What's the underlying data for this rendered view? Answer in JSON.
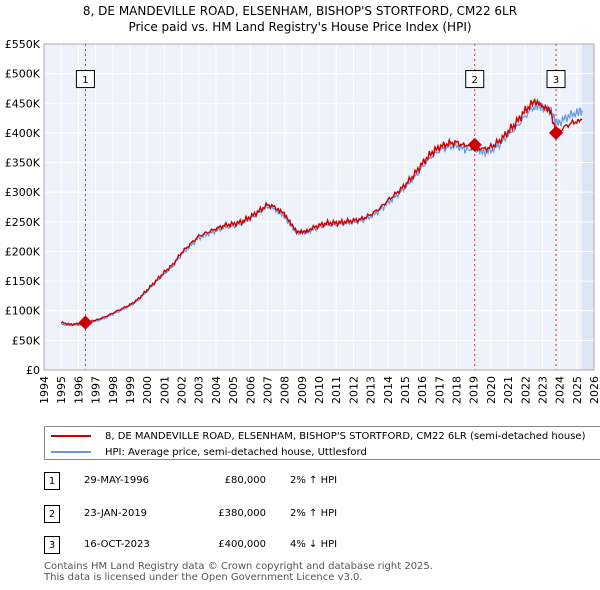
{
  "title_line1": "8, DE MANDEVILLE ROAD, ELSENHAM, BISHOP'S STORTFORD, CM22 6LR",
  "title_line2": "Price paid vs. HM Land Registry's House Price Index (HPI)",
  "colors": {
    "property": "#cc0000",
    "hpi": "#6699dd",
    "plot_bg": "#eef2fb",
    "future_bg": "#dde4f4"
  },
  "chart_data": {
    "type": "line",
    "title": "8, DE MANDEVILLE ROAD, ELSENHAM, BISHOP'S STORTFORD, CM22 6LR — Price paid vs. HM Land Registry's House Price Index (HPI)",
    "xlabel": "",
    "ylabel": "",
    "xlim": [
      1994,
      2026
    ],
    "ylim": [
      0,
      550000
    ],
    "x_ticks": [
      1994,
      1995,
      1996,
      1997,
      1998,
      1999,
      2000,
      2001,
      2002,
      2003,
      2004,
      2005,
      2006,
      2007,
      2008,
      2009,
      2010,
      2011,
      2012,
      2013,
      2014,
      2015,
      2016,
      2017,
      2018,
      2019,
      2020,
      2021,
      2022,
      2023,
      2024,
      2025,
      2026
    ],
    "x_tick_labels": [
      "1994",
      "1995",
      "1996",
      "1997",
      "1998",
      "1999",
      "2000",
      "2001",
      "2002",
      "2003",
      "2004",
      "2005",
      "2006",
      "2007",
      "2008",
      "2009",
      "2010",
      "2011",
      "2012",
      "2013",
      "2014",
      "2015",
      "2016",
      "2017",
      "2018",
      "2019",
      "2020",
      "2021",
      "2022",
      "2023",
      "2024",
      "2025",
      "2026"
    ],
    "y_ticks": [
      0,
      50000,
      100000,
      150000,
      200000,
      250000,
      300000,
      350000,
      400000,
      450000,
      500000,
      550000
    ],
    "y_tick_labels": [
      "£0",
      "£50K",
      "£100K",
      "£150K",
      "£200K",
      "£250K",
      "£300K",
      "£350K",
      "£400K",
      "£450K",
      "£500K",
      "£550K"
    ],
    "data_start": 1995,
    "data_end": 2025.3,
    "series": [
      {
        "name": "8, DE MANDEVILLE ROAD, ELSENHAM, BISHOP'S STORTFORD, CM22 6LR (semi-detached house)",
        "x": [
          1995,
          1995.5,
          1996,
          1996.41,
          1997,
          1997.5,
          1998,
          1998.5,
          1999,
          1999.5,
          2000,
          2000.5,
          2001,
          2001.5,
          2002,
          2002.5,
          2003,
          2003.5,
          2004,
          2004.5,
          2005,
          2005.5,
          2006,
          2006.5,
          2007,
          2007.5,
          2007.9,
          2008.3,
          2008.7,
          2009.1,
          2009.5,
          2010,
          2010.5,
          2011,
          2011.5,
          2012,
          2012.5,
          2013,
          2013.5,
          2014,
          2014.5,
          2015,
          2015.5,
          2016,
          2016.5,
          2017,
          2017.5,
          2018,
          2018.5,
          2019.06,
          2019.5,
          2020,
          2020.5,
          2021,
          2021.5,
          2022,
          2022.5,
          2022.8,
          2023.1,
          2023.5,
          2023.79,
          2024,
          2024.5,
          2025,
          2025.3
        ],
        "values": [
          80000,
          77000,
          78000,
          80000,
          84000,
          89000,
          96000,
          103000,
          110000,
          120000,
          135000,
          150000,
          165000,
          178000,
          198000,
          212000,
          226000,
          232000,
          238000,
          244000,
          246000,
          250000,
          258000,
          268000,
          279000,
          274000,
          266000,
          248000,
          232000,
          234000,
          238000,
          244000,
          248000,
          248000,
          250000,
          252000,
          255000,
          262000,
          272000,
          286000,
          298000,
          312000,
          328000,
          348000,
          365000,
          376000,
          382000,
          384000,
          378000,
          380000,
          372000,
          376000,
          386000,
          402000,
          418000,
          438000,
          452000,
          450000,
          442000,
          432000,
          400000,
          404000,
          414000,
          420000,
          422000
        ]
      },
      {
        "name": "HPI: Average price, semi-detached house, Uttlesford",
        "x": [
          1995,
          1995.5,
          1996,
          1996.41,
          1997,
          1997.5,
          1998,
          1998.5,
          1999,
          1999.5,
          2000,
          2000.5,
          2001,
          2001.5,
          2002,
          2002.5,
          2003,
          2003.5,
          2004,
          2004.5,
          2005,
          2005.5,
          2006,
          2006.5,
          2007,
          2007.5,
          2007.9,
          2008.3,
          2008.7,
          2009.1,
          2009.5,
          2010,
          2010.5,
          2011,
          2011.5,
          2012,
          2012.5,
          2013,
          2013.5,
          2014,
          2014.5,
          2015,
          2015.5,
          2016,
          2016.5,
          2017,
          2017.5,
          2018,
          2018.5,
          2019.06,
          2019.5,
          2020,
          2020.5,
          2021,
          2021.5,
          2022,
          2022.5,
          2022.8,
          2023.1,
          2023.5,
          2023.79,
          2024,
          2024.5,
          2025,
          2025.3
        ],
        "values": [
          77000,
          75000,
          76000,
          78000,
          82000,
          87000,
          94000,
          101000,
          108000,
          118000,
          133000,
          148000,
          162000,
          175000,
          195000,
          209000,
          223000,
          229000,
          235000,
          241000,
          243000,
          247000,
          255000,
          265000,
          276000,
          271000,
          263000,
          245000,
          229000,
          231000,
          235000,
          241000,
          245000,
          245000,
          247000,
          249000,
          252000,
          259000,
          269000,
          282000,
          294000,
          308000,
          323000,
          342000,
          359000,
          370000,
          376000,
          378000,
          372000,
          372000,
          366000,
          370000,
          380000,
          396000,
          410000,
          428000,
          444000,
          446000,
          442000,
          436000,
          418000,
          418000,
          428000,
          434000,
          438000
        ]
      }
    ],
    "markers": [
      {
        "label": "1",
        "date": "29-MAY-1996",
        "x": 1996.41,
        "price": 80000,
        "price_label": "£80,000",
        "hpi_change": "2% ↑ HPI"
      },
      {
        "label": "2",
        "date": "23-JAN-2019",
        "x": 2019.06,
        "price": 380000,
        "price_label": "£380,000",
        "hpi_change": "2% ↑ HPI"
      },
      {
        "label": "3",
        "date": "16-OCT-2023",
        "x": 2023.79,
        "price": 400000,
        "price_label": "£400,000",
        "hpi_change": "4% ↓ HPI"
      }
    ],
    "marker_badge_value": 490000,
    "legend_position": "bottom"
  },
  "legend": {
    "property_label": "8, DE MANDEVILLE ROAD, ELSENHAM, BISHOP'S STORTFORD, CM22 6LR (semi-detached house)",
    "hpi_label": "HPI: Average price, semi-detached house, Uttlesford"
  },
  "transactions": [
    {
      "num": "1",
      "date": "29-MAY-1996",
      "price": "£80,000",
      "hpi": "2% ↑ HPI"
    },
    {
      "num": "2",
      "date": "23-JAN-2019",
      "price": "£380,000",
      "hpi": "2% ↑ HPI"
    },
    {
      "num": "3",
      "date": "16-OCT-2023",
      "price": "£400,000",
      "hpi": "4% ↓ HPI"
    }
  ],
  "footer_line1": "Contains HM Land Registry data © Crown copyright and database right 2025.",
  "footer_line2": "This data is licensed under the Open Government Licence v3.0."
}
